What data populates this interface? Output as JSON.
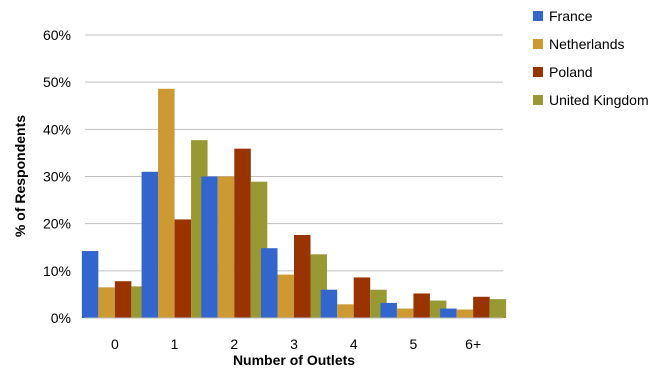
{
  "chart_data": {
    "type": "bar",
    "title": "",
    "xlabel": "Number of Outlets",
    "ylabel": "% of Respondents",
    "categories": [
      "0",
      "1",
      "2",
      "3",
      "4",
      "5",
      "6+"
    ],
    "ylim": [
      0,
      60
    ],
    "yticks": [
      0,
      10,
      20,
      30,
      40,
      50,
      60
    ],
    "ytick_labels": [
      "0%",
      "10%",
      "20%",
      "30%",
      "40%",
      "50%",
      "60%"
    ],
    "grid": "horizontal",
    "legend_position": "right",
    "series": [
      {
        "name": "France",
        "color": "#3366cc",
        "values": [
          14.2,
          31.0,
          30.0,
          14.8,
          6.0,
          3.2,
          2.0
        ]
      },
      {
        "name": "Netherlands",
        "color": "#cc9933",
        "values": [
          6.5,
          48.6,
          30.0,
          9.2,
          2.9,
          2.0,
          1.8
        ]
      },
      {
        "name": "Poland",
        "color": "#993300",
        "values": [
          7.8,
          20.9,
          35.9,
          17.6,
          8.6,
          5.2,
          4.5
        ]
      },
      {
        "name": "United Kingdom",
        "color": "#999933",
        "values": [
          6.7,
          37.7,
          28.9,
          13.5,
          6.0,
          3.7,
          4.0
        ]
      }
    ]
  }
}
